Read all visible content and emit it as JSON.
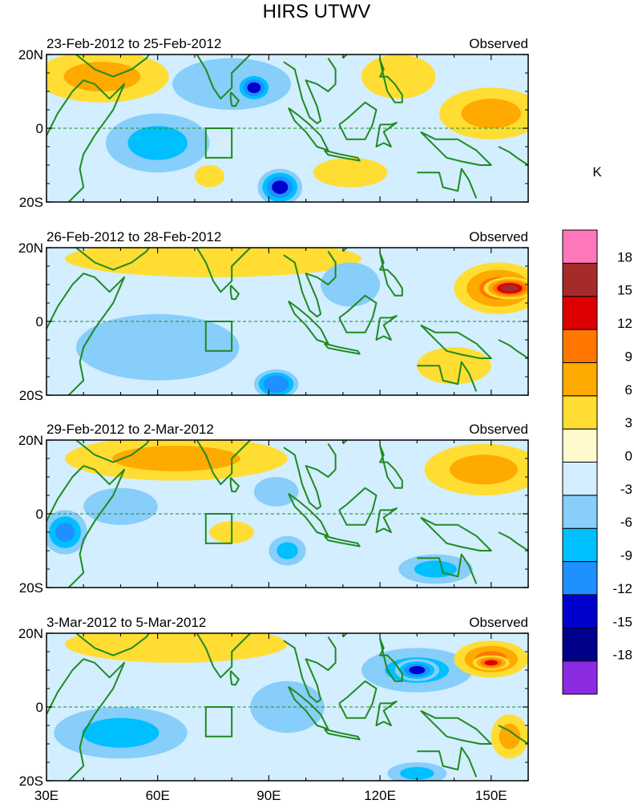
{
  "chart_data": {
    "type": "heatmap",
    "title": "HIRS UTWV",
    "units": "K",
    "x_axis": {
      "range": [
        30,
        160
      ],
      "tick_values": [
        30,
        60,
        90,
        120,
        150
      ],
      "tick_labels": [
        "30E",
        "60E",
        "90E",
        "120E",
        "150E"
      ]
    },
    "y_axis": {
      "range": [
        -20,
        20
      ],
      "tick_values": [
        20,
        0,
        -20
      ],
      "tick_labels": [
        "20N",
        "0",
        "20S"
      ]
    },
    "colorbar": {
      "levels": [
        -18,
        -15,
        -12,
        -9,
        -6,
        -3,
        0,
        3,
        6,
        9,
        12,
        15,
        18
      ],
      "labels": [
        "18",
        "15",
        "12",
        "9",
        "6",
        "3",
        "0",
        "-3",
        "-6",
        "-9",
        "-12",
        "-15",
        "-18"
      ],
      "colors": [
        "#8a2be2",
        "#00008b",
        "#0000cd",
        "#1e90ff",
        "#00bfff",
        "#87cefa",
        "#d2eeff",
        "#fffacd",
        "#ffdd33",
        "#ffaa00",
        "#ff7700",
        "#dd0000",
        "#a52a2a",
        "#ff77bb"
      ]
    },
    "box_region": {
      "lon": [
        73,
        80
      ],
      "lat": [
        -8,
        0
      ]
    },
    "panels": [
      {
        "date_range": "23-Feb-2012 to 25-Feb-2012",
        "label": "Observed",
        "base_value": -2,
        "features": [
          {
            "lon": 45,
            "lat": 14,
            "rx": 18,
            "ry": 7,
            "value": 6
          },
          {
            "lon": 80,
            "lat": 12,
            "rx": 16,
            "ry": 7,
            "value": -6
          },
          {
            "lon": 86,
            "lat": 11,
            "rx": 5,
            "ry": 4,
            "value": -13
          },
          {
            "lon": 60,
            "lat": -4,
            "rx": 14,
            "ry": 8,
            "value": -7
          },
          {
            "lon": 93,
            "lat": -16,
            "rx": 6,
            "ry": 5,
            "value": -13
          },
          {
            "lon": 74,
            "lat": -13,
            "rx": 4,
            "ry": 3,
            "value": 5
          },
          {
            "lon": 125,
            "lat": 14,
            "rx": 10,
            "ry": 6,
            "value": 5
          },
          {
            "lon": 150,
            "lat": 4,
            "rx": 14,
            "ry": 7,
            "value": 7
          },
          {
            "lon": 112,
            "lat": -12,
            "rx": 10,
            "ry": 4,
            "value": 4
          }
        ]
      },
      {
        "date_range": "26-Feb-2012 to 28-Feb-2012",
        "label": "Observed",
        "base_value": -1,
        "features": [
          {
            "lon": 75,
            "lat": 17,
            "rx": 40,
            "ry": 5,
            "value": 5
          },
          {
            "lon": 152,
            "lat": 9,
            "rx": 12,
            "ry": 7,
            "value": 11
          },
          {
            "lon": 155,
            "lat": 9,
            "rx": 7,
            "ry": 3,
            "value": 16
          },
          {
            "lon": 60,
            "lat": -7,
            "rx": 22,
            "ry": 9,
            "value": -5
          },
          {
            "lon": 92,
            "lat": -17,
            "rx": 6,
            "ry": 4,
            "value": -12
          },
          {
            "lon": 112,
            "lat": 10,
            "rx": 8,
            "ry": 6,
            "value": -4
          },
          {
            "lon": 140,
            "lat": -12,
            "rx": 10,
            "ry": 5,
            "value": 3
          }
        ]
      },
      {
        "date_range": "29-Feb-2012 to 2-Mar-2012",
        "label": "Observed",
        "base_value": -2,
        "features": [
          {
            "lon": 65,
            "lat": 15,
            "rx": 30,
            "ry": 6,
            "value": 6
          },
          {
            "lon": 148,
            "lat": 12,
            "rx": 16,
            "ry": 7,
            "value": 6
          },
          {
            "lon": 35,
            "lat": -5,
            "rx": 6,
            "ry": 6,
            "value": -11
          },
          {
            "lon": 50,
            "lat": 2,
            "rx": 10,
            "ry": 5,
            "value": -6
          },
          {
            "lon": 92,
            "lat": 6,
            "rx": 6,
            "ry": 4,
            "value": -6
          },
          {
            "lon": 95,
            "lat": -10,
            "rx": 5,
            "ry": 4,
            "value": -7
          },
          {
            "lon": 135,
            "lat": -15,
            "rx": 10,
            "ry": 4,
            "value": -7
          },
          {
            "lon": 80,
            "lat": -5,
            "rx": 6,
            "ry": 3,
            "value": 4
          }
        ]
      },
      {
        "date_range": "3-Mar-2012 to 5-Mar-2012",
        "label": "Observed",
        "base_value": -1,
        "features": [
          {
            "lon": 65,
            "lat": 17,
            "rx": 30,
            "ry": 5,
            "value": 5
          },
          {
            "lon": 130,
            "lat": 10,
            "rx": 15,
            "ry": 6,
            "value": -8
          },
          {
            "lon": 130,
            "lat": 10,
            "rx": 6,
            "ry": 3,
            "value": -14
          },
          {
            "lon": 150,
            "lat": 13,
            "rx": 10,
            "ry": 5,
            "value": 9
          },
          {
            "lon": 150,
            "lat": 12,
            "rx": 5,
            "ry": 2,
            "value": 13
          },
          {
            "lon": 50,
            "lat": -7,
            "rx": 18,
            "ry": 7,
            "value": -7
          },
          {
            "lon": 95,
            "lat": 0,
            "rx": 10,
            "ry": 7,
            "value": -5
          },
          {
            "lon": 155,
            "lat": -8,
            "rx": 5,
            "ry": 6,
            "value": 7
          },
          {
            "lon": 130,
            "lat": -18,
            "rx": 8,
            "ry": 3,
            "value": -8
          }
        ]
      }
    ]
  }
}
